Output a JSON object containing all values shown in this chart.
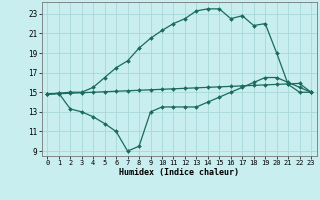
{
  "xlabel": "Humidex (Indice chaleur)",
  "bg_color": "#c8eef0",
  "grid_color": "#a8d8da",
  "line_color": "#1a6b5a",
  "xlim": [
    -0.5,
    23.5
  ],
  "ylim": [
    8.5,
    24.2
  ],
  "xticks": [
    0,
    1,
    2,
    3,
    4,
    5,
    6,
    7,
    8,
    9,
    10,
    11,
    12,
    13,
    14,
    15,
    16,
    17,
    18,
    19,
    20,
    21,
    22,
    23
  ],
  "yticks": [
    9,
    11,
    13,
    15,
    17,
    19,
    21,
    23
  ],
  "line1_x": [
    0,
    1,
    2,
    3,
    4,
    5,
    6,
    7,
    8,
    9,
    10,
    11,
    12,
    13,
    14,
    15,
    16,
    17,
    18,
    19,
    20,
    21,
    22,
    23
  ],
  "line1_y": [
    14.8,
    14.85,
    14.9,
    14.95,
    15.0,
    15.05,
    15.1,
    15.15,
    15.2,
    15.25,
    15.3,
    15.35,
    15.4,
    15.45,
    15.5,
    15.55,
    15.6,
    15.65,
    15.7,
    15.75,
    15.8,
    15.85,
    15.9,
    15.0
  ],
  "line2_x": [
    0,
    1,
    2,
    3,
    4,
    5,
    6,
    7,
    8,
    9,
    10,
    11,
    12,
    13,
    14,
    15,
    16,
    17,
    18,
    19,
    20,
    21,
    22,
    23
  ],
  "line2_y": [
    14.8,
    14.9,
    13.3,
    13.0,
    12.5,
    11.8,
    11.0,
    9.0,
    9.5,
    13.0,
    13.5,
    13.5,
    13.5,
    13.5,
    14.0,
    14.5,
    15.0,
    15.5,
    16.0,
    16.5,
    16.5,
    16.0,
    15.5,
    15.0
  ],
  "line3_x": [
    0,
    1,
    2,
    3,
    4,
    5,
    6,
    7,
    8,
    9,
    10,
    11,
    12,
    13,
    14,
    15,
    16,
    17,
    18,
    19,
    20,
    21,
    22,
    23
  ],
  "line3_y": [
    14.8,
    14.9,
    15.0,
    15.0,
    15.5,
    16.5,
    17.5,
    18.2,
    19.5,
    20.5,
    21.3,
    22.0,
    22.5,
    23.3,
    23.5,
    23.5,
    22.5,
    22.8,
    21.8,
    22.0,
    19.0,
    15.8,
    15.0,
    15.0
  ]
}
